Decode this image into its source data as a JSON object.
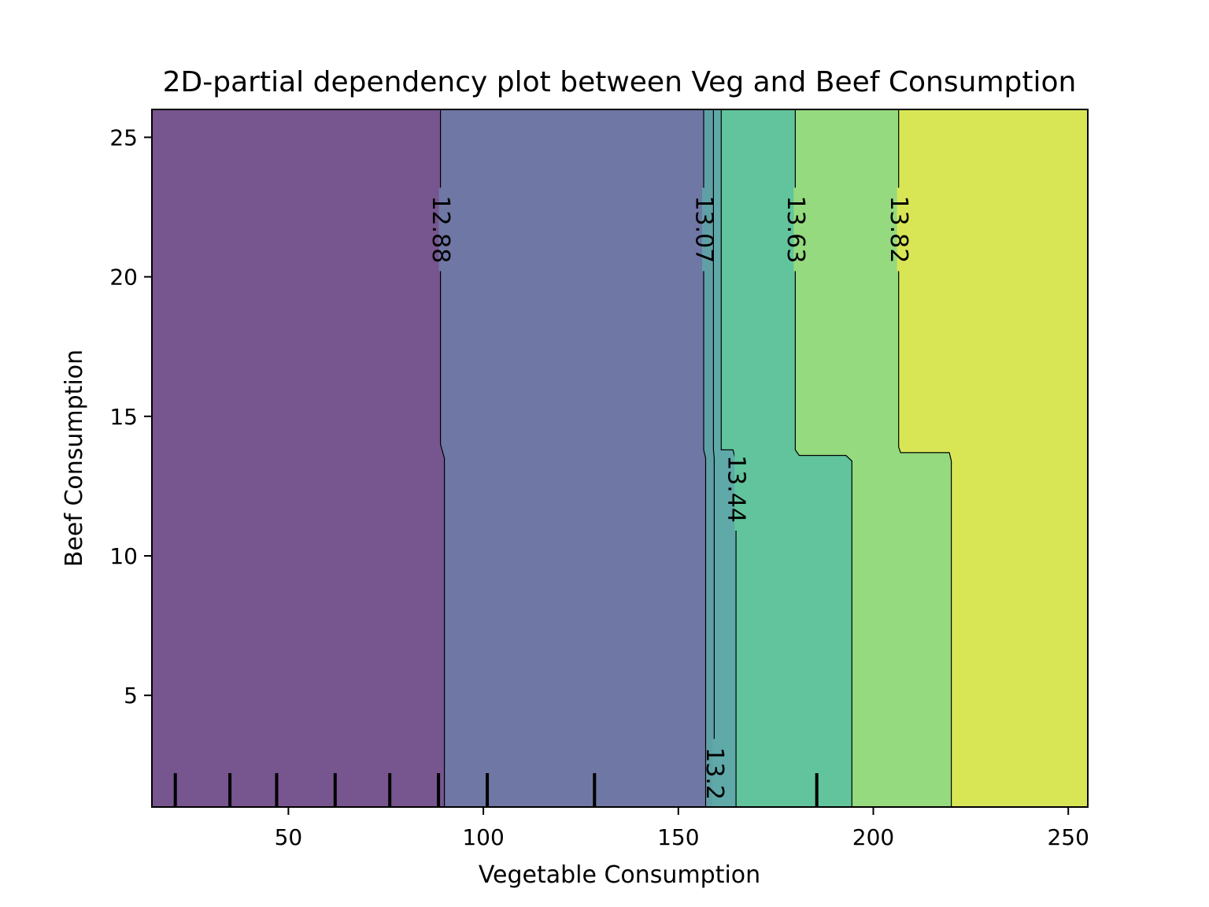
{
  "chart_data": {
    "type": "contour",
    "title": "2D-partial dependency plot between Veg and Beef Consumption",
    "xlabel": "Vegetable Consumption",
    "ylabel": "Beef Consumption",
    "xlim": [
      15,
      255
    ],
    "ylim": [
      1,
      26
    ],
    "xticks": [
      50,
      100,
      150,
      200,
      250
    ],
    "yticks": [
      5,
      10,
      15,
      20,
      25
    ],
    "grid": false,
    "legend": "none",
    "contour_levels": [
      {
        "level": "12.88",
        "color": "#5b2a80"
      },
      {
        "level": "13.07",
        "color": "#4f5a93"
      },
      {
        "level": "13.2",
        "color": "#3b8e9a"
      },
      {
        "level": "13.44",
        "color": "#39b485"
      },
      {
        "level": "13.63",
        "color": "#79d258"
      },
      {
        "level": "13.82",
        "color": "#d0e11c"
      }
    ],
    "regions": [
      {
        "value_range": "< 12.88",
        "color": "#77558f",
        "boundary": [
          [
            15,
            1
          ],
          [
            15,
            26
          ],
          [
            89,
            26
          ],
          [
            89,
            14
          ],
          [
            90,
            13.5
          ],
          [
            90,
            1
          ]
        ]
      },
      {
        "value_range": "12.88 – 13.07",
        "color": "#6f77a5",
        "boundary": [
          [
            89,
            26
          ],
          [
            156.5,
            26
          ],
          [
            156.5,
            13.8
          ],
          [
            157,
            13.5
          ],
          [
            157,
            1
          ],
          [
            90,
            1
          ],
          [
            90,
            13.5
          ],
          [
            89,
            14
          ]
        ]
      },
      {
        "value_range": "13.07 – 13.2",
        "color": "#5fa0a6",
        "boundary": [
          [
            156.5,
            26
          ],
          [
            159,
            26
          ],
          [
            159,
            13.8
          ],
          [
            159.2,
            13.5
          ],
          [
            159.2,
            1
          ],
          [
            157,
            1
          ],
          [
            157,
            13.5
          ],
          [
            156.5,
            13.8
          ]
        ]
      },
      {
        "value_range": "13.2 – 13.44",
        "color": "#5fa9a9",
        "boundary": [
          [
            159,
            26
          ],
          [
            161,
            26
          ],
          [
            161,
            13.8
          ],
          [
            164,
            13.8
          ],
          [
            164.8,
            13.4
          ],
          [
            164.8,
            1
          ],
          [
            159.2,
            1
          ],
          [
            159.2,
            13.5
          ],
          [
            159,
            13.8
          ]
        ]
      },
      {
        "value_range": "13.44 – 13.63",
        "color": "#61c49c",
        "boundary": [
          [
            161,
            26
          ],
          [
            180,
            26
          ],
          [
            180,
            13.8
          ],
          [
            181,
            13.6
          ],
          [
            193,
            13.6
          ],
          [
            194.5,
            13.4
          ],
          [
            194.5,
            1
          ],
          [
            164.8,
            1
          ],
          [
            164.8,
            13.4
          ],
          [
            164,
            13.8
          ],
          [
            161,
            13.8
          ]
        ]
      },
      {
        "value_range": "13.63 – 13.82",
        "color": "#95da7e",
        "boundary": [
          [
            180,
            26
          ],
          [
            206.5,
            26
          ],
          [
            206.5,
            13.9
          ],
          [
            207,
            13.7
          ],
          [
            219.5,
            13.7
          ],
          [
            220,
            13.4
          ],
          [
            220,
            1
          ],
          [
            194.5,
            1
          ],
          [
            194.5,
            13.4
          ],
          [
            193,
            13.6
          ],
          [
            181,
            13.6
          ],
          [
            180,
            13.8
          ]
        ]
      },
      {
        "value_range": "> 13.82",
        "color": "#d8e656",
        "boundary": [
          [
            206.5,
            26
          ],
          [
            255,
            26
          ],
          [
            255,
            1
          ],
          [
            220,
            1
          ],
          [
            220,
            13.4
          ],
          [
            219.5,
            13.7
          ],
          [
            207,
            13.7
          ],
          [
            206.5,
            13.9
          ]
        ]
      }
    ],
    "contour_lines": [
      {
        "label": "12.88",
        "points": [
          [
            89,
            26
          ],
          [
            89,
            14
          ],
          [
            90,
            13.5
          ],
          [
            90,
            1
          ]
        ],
        "label_pos": [
          89,
          21.7
        ]
      },
      {
        "label": "13.07",
        "points": [
          [
            156.5,
            26
          ],
          [
            156.5,
            13.8
          ],
          [
            157,
            13.5
          ],
          [
            157,
            1
          ]
        ],
        "label_pos": [
          156.5,
          21.7
        ]
      },
      {
        "label": "13.2",
        "points": [
          [
            159,
            26
          ],
          [
            159,
            13.8
          ],
          [
            159.2,
            13.5
          ],
          [
            159.2,
            1
          ]
        ],
        "label_pos": [
          159.2,
          2.2
        ]
      },
      {
        "label": "13.44",
        "points": [
          [
            161,
            26
          ],
          [
            161,
            13.8
          ],
          [
            164,
            13.8
          ],
          [
            164.8,
            13.4
          ],
          [
            164.8,
            1
          ]
        ],
        "label_pos": [
          164.8,
          12.4
        ]
      },
      {
        "label": "13.63",
        "points": [
          [
            180,
            26
          ],
          [
            180,
            13.8
          ],
          [
            181,
            13.6
          ],
          [
            193,
            13.6
          ],
          [
            194.5,
            13.4
          ],
          [
            194.5,
            1
          ]
        ],
        "label_pos": [
          180,
          21.7
        ]
      },
      {
        "label": "13.82",
        "points": [
          [
            206.5,
            26
          ],
          [
            206.5,
            13.9
          ],
          [
            207,
            13.7
          ],
          [
            219.5,
            13.7
          ],
          [
            220,
            13.4
          ],
          [
            220,
            1
          ]
        ],
        "label_pos": [
          206.5,
          21.7
        ]
      }
    ],
    "deciles_x": [
      21,
      35,
      47,
      62,
      76,
      88.5,
      101,
      128.5,
      185.5
    ]
  }
}
